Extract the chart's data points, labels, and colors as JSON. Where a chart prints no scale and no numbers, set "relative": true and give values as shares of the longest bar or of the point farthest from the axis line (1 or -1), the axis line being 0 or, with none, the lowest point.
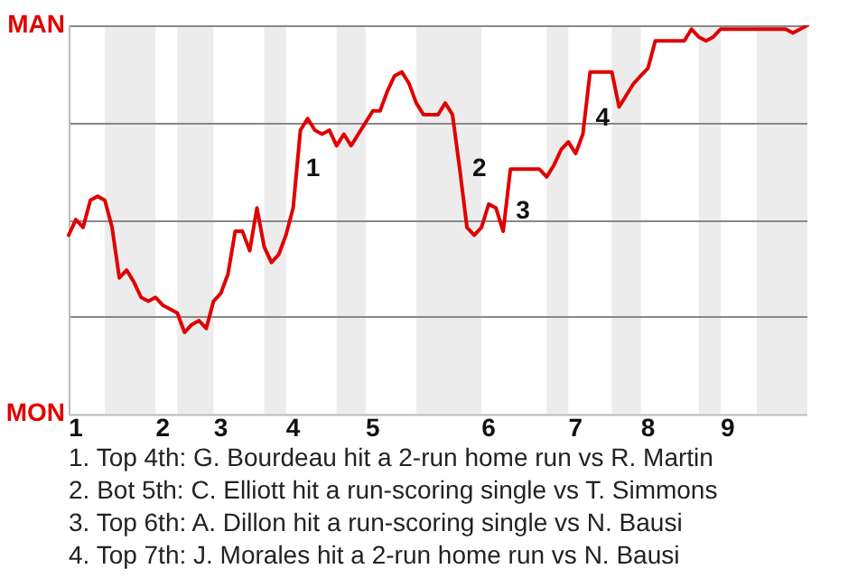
{
  "chart_data": {
    "type": "line",
    "categories": [
      null,
      "1",
      null,
      null,
      null,
      null,
      null,
      null,
      null,
      null,
      null,
      null,
      null,
      "2",
      null,
      null,
      null,
      null,
      null,
      null,
      null,
      "3",
      null,
      null,
      null,
      null,
      null,
      null,
      null,
      null,
      null,
      "4",
      null,
      null,
      null,
      null,
      null,
      null,
      null,
      null,
      null,
      null,
      "5",
      null,
      null,
      null,
      null,
      null,
      null,
      null,
      null,
      null,
      null,
      null,
      null,
      null,
      null,
      null,
      "6",
      null,
      null,
      null,
      null,
      null,
      null,
      null,
      null,
      null,
      null,
      null,
      "7",
      null,
      null,
      null,
      null,
      null,
      null,
      null,
      null,
      null,
      "8",
      null,
      null,
      null,
      null,
      null,
      null,
      null,
      null,
      null,
      null,
      "9",
      null,
      null,
      null,
      null,
      null,
      null,
      null,
      null,
      null,
      null,
      null
    ],
    "series": [
      {
        "color": "#e00000",
        "values": [
          0.46,
          0.5,
          0.48,
          0.55,
          0.56,
          0.55,
          0.48,
          0.35,
          0.37,
          0.34,
          0.3,
          0.29,
          0.3,
          0.28,
          0.27,
          0.26,
          0.21,
          0.23,
          0.24,
          0.22,
          0.29,
          0.31,
          0.36,
          0.47,
          0.47,
          0.42,
          0.53,
          0.43,
          0.39,
          0.41,
          0.46,
          0.53,
          0.73,
          0.76,
          0.73,
          0.72,
          0.73,
          0.69,
          0.72,
          0.69,
          0.72,
          0.75,
          0.78,
          0.78,
          0.83,
          0.87,
          0.88,
          0.85,
          0.8,
          0.77,
          0.77,
          0.77,
          0.8,
          0.77,
          0.63,
          0.48,
          0.46,
          0.48,
          0.54,
          0.53,
          0.47,
          0.63,
          0.63,
          0.63,
          0.63,
          0.63,
          0.61,
          0.64,
          0.68,
          0.7,
          0.67,
          0.72,
          0.88,
          0.88,
          0.88,
          0.88,
          0.79,
          0.82,
          0.85,
          0.87,
          0.89,
          0.96,
          0.96,
          0.96,
          0.96,
          0.96,
          0.99,
          0.97,
          0.96,
          0.97,
          0.99,
          0.99,
          0.99,
          0.99,
          0.99,
          0.99,
          0.99,
          0.99,
          0.99,
          0.99,
          0.98,
          0.99,
          1
        ]
      }
    ],
    "relative": true,
    "grid": "y",
    "legend": false,
    "marker": "none",
    "line_style": "solid",
    "annotations": [
      "MAN",
      "MON",
      "1",
      "2",
      "3",
      "4",
      "1. Top 4th: G. Bourdeau hit a 2-run home run vs R. Martin",
      "2. Bot 5th: C. Elliott hit a run-scoring single vs T. Simmons",
      "3. Top 6th: A. Dillon hit a run-scoring single vs N. Bausi",
      "4. Top 7th: J. Morales hit a 2-run home run vs N. Bausi"
    ]
  }
}
